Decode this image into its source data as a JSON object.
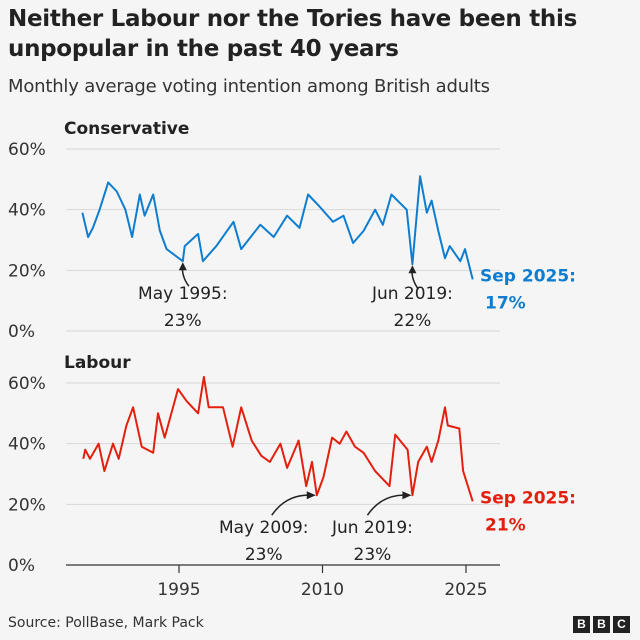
{
  "title": "Neither Labour nor the Tories have been this unpopular in the past 40 years",
  "subtitle": "Monthly average voting intention among British adults",
  "source": "Source: PollBase, Mark Pack",
  "logo": [
    "B",
    "B",
    "C"
  ],
  "chart_data": [
    {
      "type": "line",
      "title": "Conservative",
      "color": "#0f7dcf",
      "ylim": [
        0,
        60
      ],
      "yticks": [
        "0%",
        "20%",
        "40%",
        "60%"
      ],
      "ytick_values": [
        0,
        20,
        40,
        60
      ],
      "xlim": [
        1983.3,
        2028.5
      ],
      "grid": true,
      "x": [
        1984.9,
        1985.5,
        1986.0,
        1986.7,
        1987.6,
        1988.5,
        1989.4,
        1990.1,
        1990.9,
        1991.4,
        1992.3,
        1993.0,
        1993.7,
        1995.4,
        1995.6,
        1997.0,
        1997.5,
        1998.9,
        2000.7,
        2001.5,
        2003.5,
        2004.9,
        2006.3,
        2007.6,
        2008.5,
        2009.7,
        2011.1,
        2012.2,
        2013.2,
        2014.3,
        2015.5,
        2016.3,
        2017.2,
        2018.8,
        2019.4,
        2020.2,
        2020.9,
        2021.4,
        2022.1,
        2022.8,
        2023.3,
        2024.4,
        2024.9,
        2025.7
      ],
      "y": [
        39,
        31,
        34,
        40,
        49,
        46,
        40,
        31,
        45,
        38,
        45,
        33,
        27,
        23,
        28,
        32,
        23,
        28,
        36,
        27,
        35,
        31,
        38,
        34,
        45,
        41,
        36,
        38,
        29,
        33,
        40,
        35,
        45,
        40,
        22,
        51,
        39,
        43,
        33,
        24,
        28,
        23,
        27,
        17
      ],
      "annotations": [
        {
          "x": 1995.4,
          "y": 23,
          "label": "May 1995:",
          "value": "23%"
        },
        {
          "x": 2019.4,
          "y": 22,
          "label": "Jun 2019:",
          "value": "22%"
        }
      ],
      "end_label": {
        "label": "Sep 2025:",
        "value": "17%"
      }
    },
    {
      "type": "line",
      "title": "Labour",
      "color": "#e3200f",
      "ylim": [
        0,
        60
      ],
      "yticks": [
        "0%",
        "20%",
        "40%",
        "60%"
      ],
      "ytick_values": [
        0,
        20,
        40,
        60
      ],
      "xlim": [
        1983.3,
        2028.5
      ],
      "xticks": [
        "1995",
        "2010",
        "2025"
      ],
      "xtick_values": [
        1995,
        2010,
        2025
      ],
      "grid": true,
      "x": [
        1985.0,
        1985.2,
        1985.7,
        1986.6,
        1987.2,
        1988.1,
        1988.7,
        1989.5,
        1990.2,
        1991.1,
        1992.3,
        1992.8,
        1993.5,
        1994.9,
        1995.8,
        1997.0,
        1997.6,
        1998.1,
        1999.6,
        2000.6,
        2001.5,
        2002.6,
        2003.6,
        2004.5,
        2005.6,
        2006.3,
        2007.5,
        2008.3,
        2008.9,
        2009.4,
        2010.1,
        2011.0,
        2011.8,
        2012.5,
        2013.4,
        2014.3,
        2015.5,
        2017.0,
        2017.6,
        2018.9,
        2019.4,
        2020.0,
        2020.9,
        2021.4,
        2022.1,
        2022.8,
        2023.1,
        2024.3,
        2024.7,
        2025.7
      ],
      "y": [
        35,
        38,
        35,
        40,
        31,
        40,
        35,
        46,
        52,
        39,
        37,
        50,
        42,
        58,
        54,
        50,
        62,
        52,
        52,
        39,
        52,
        41,
        36,
        34,
        40,
        32,
        41,
        26,
        34,
        23,
        29,
        42,
        40,
        44,
        39,
        37,
        31,
        26,
        43,
        38,
        23,
        34,
        39,
        34,
        41,
        52,
        46,
        45,
        31,
        21
      ],
      "annotations": [
        {
          "x": 2009.4,
          "y": 23,
          "label": "May 2009:",
          "value": "23%"
        },
        {
          "x": 2019.4,
          "y": 23,
          "label": "Jun 2019:",
          "value": "23%"
        }
      ],
      "end_label": {
        "label": "Sep 2025:",
        "value": "21%"
      }
    }
  ]
}
